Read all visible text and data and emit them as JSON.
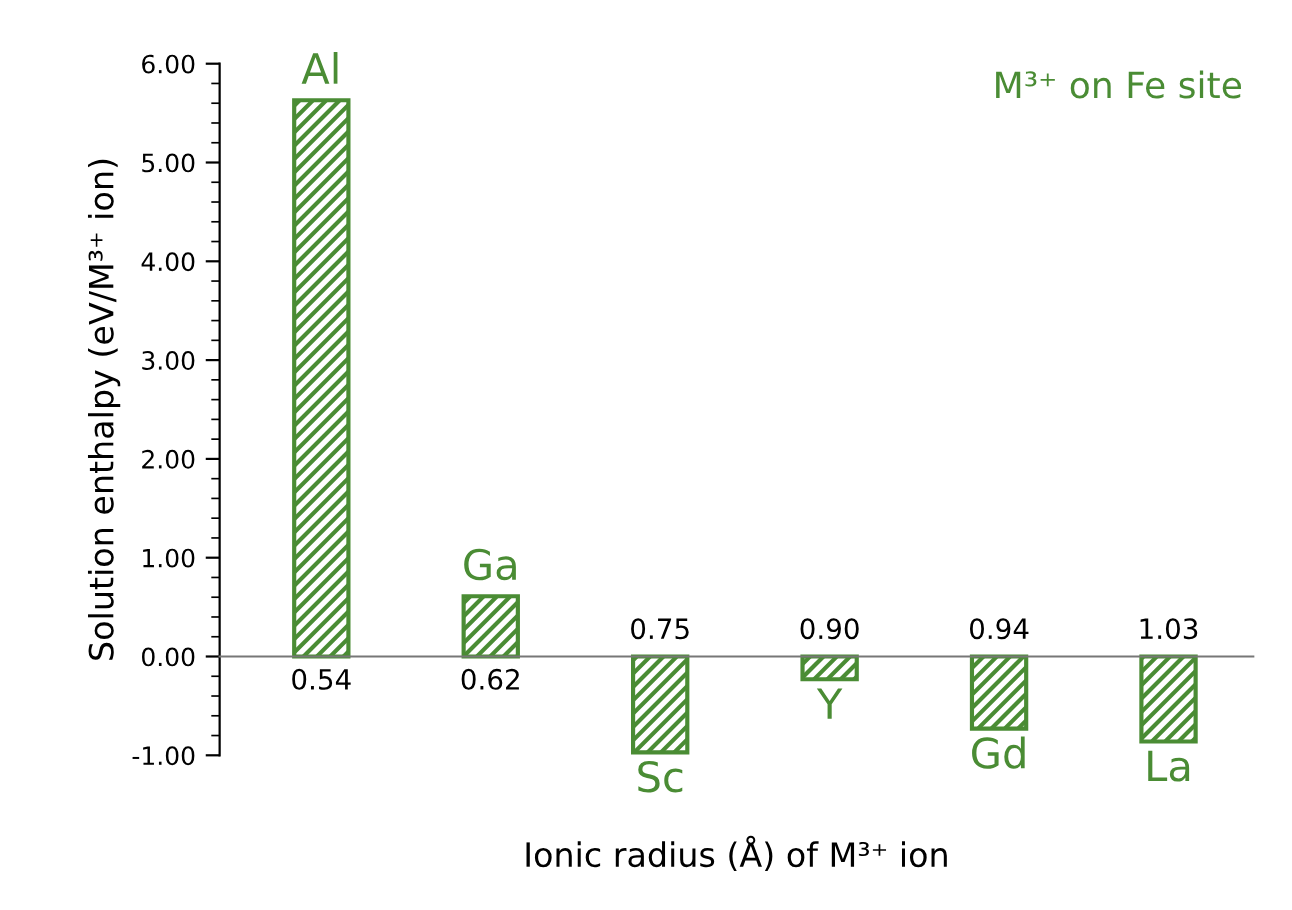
{
  "chart_data": {
    "type": "bar",
    "title": "M³⁺ on Fe site",
    "xlabel": "Ionic radius (Å) of M³⁺ ion",
    "ylabel": "Solution enthalpy (eV/M³⁺ ion)",
    "categories": [
      "0.54",
      "0.62",
      "0.75",
      "0.90",
      "0.94",
      "1.03"
    ],
    "values": [
      5.63,
      0.61,
      -0.97,
      -0.23,
      -0.73,
      -0.86
    ],
    "color": "#4a8c34",
    "annotations": [
      {
        "text": "Al",
        "x": "0.54",
        "y": 5.63
      },
      {
        "text": "Ga",
        "x": "0.62",
        "y": 0.61
      },
      {
        "text": "Sc",
        "x": "0.75",
        "y": -0.97
      },
      {
        "text": "Y",
        "x": "0.90",
        "y": -0.23
      },
      {
        "text": "Gd",
        "x": "0.94",
        "y": -0.73
      },
      {
        "text": "La",
        "x": "1.03",
        "y": -0.86
      }
    ],
    "ylim": [
      -1,
      6
    ],
    "yticks": [
      {
        "value": -1,
        "label": "-1.00"
      },
      {
        "value": 0,
        "label": "0.00"
      },
      {
        "value": 1,
        "label": "1.00"
      },
      {
        "value": 2,
        "label": "2.00"
      },
      {
        "value": 3,
        "label": "3.00"
      },
      {
        "value": 4,
        "label": "4.00"
      },
      {
        "value": 5,
        "label": "5.00"
      },
      {
        "value": 6,
        "label": "6.00"
      }
    ],
    "grid": false,
    "legend": false
  }
}
